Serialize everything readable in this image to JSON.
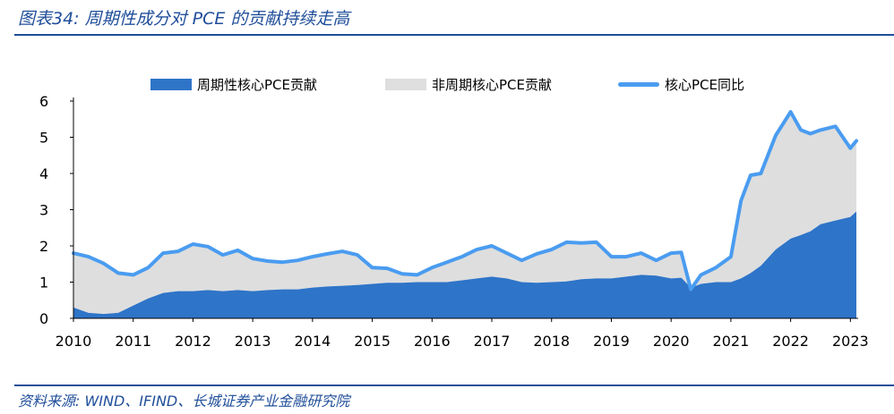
{
  "title": "图表34: 周期性成分对 PCE 的贡献持续走高",
  "source": "资料来源: WIND、IFIND、长城证券产业金融研究院",
  "chart_data": {
    "type": "area",
    "ylim": [
      0,
      6
    ],
    "yticks": [
      "0",
      "1",
      "2",
      "3",
      "4",
      "5",
      "6"
    ],
    "xlim": [
      2010,
      2023.1
    ],
    "xticks": [
      "2010",
      "2011",
      "2012",
      "2013",
      "2014",
      "2015",
      "2016",
      "2017",
      "2018",
      "2019",
      "2020",
      "2021",
      "2022",
      "2023"
    ],
    "legend": "top",
    "colors": {
      "cyclical": "#2e74c8",
      "noncyclical": "#dedede",
      "core": "#4a9cf0"
    },
    "x": [
      2010.0,
      2010.25,
      2010.5,
      2010.75,
      2011.0,
      2011.25,
      2011.5,
      2011.75,
      2012.0,
      2012.25,
      2012.5,
      2012.75,
      2013.0,
      2013.25,
      2013.5,
      2013.75,
      2014.0,
      2014.25,
      2014.5,
      2014.75,
      2015.0,
      2015.25,
      2015.5,
      2015.75,
      2016.0,
      2016.25,
      2016.5,
      2016.75,
      2017.0,
      2017.25,
      2017.5,
      2017.75,
      2018.0,
      2018.25,
      2018.5,
      2018.75,
      2019.0,
      2019.25,
      2019.5,
      2019.75,
      2020.0,
      2020.17,
      2020.33,
      2020.5,
      2020.75,
      2021.0,
      2021.17,
      2021.33,
      2021.5,
      2021.75,
      2022.0,
      2022.17,
      2022.33,
      2022.5,
      2022.75,
      2023.0,
      2023.1
    ],
    "series": [
      {
        "name": "周期性核心PCE贡献",
        "values": [
          0.3,
          0.15,
          0.12,
          0.15,
          0.35,
          0.55,
          0.7,
          0.75,
          0.75,
          0.78,
          0.75,
          0.78,
          0.75,
          0.78,
          0.8,
          0.8,
          0.85,
          0.88,
          0.9,
          0.92,
          0.95,
          0.98,
          0.98,
          1.0,
          1.0,
          1.0,
          1.05,
          1.1,
          1.15,
          1.1,
          1.0,
          0.98,
          1.0,
          1.02,
          1.08,
          1.1,
          1.1,
          1.15,
          1.2,
          1.18,
          1.1,
          1.12,
          0.85,
          0.95,
          1.0,
          1.0,
          1.1,
          1.25,
          1.45,
          1.9,
          2.2,
          2.3,
          2.4,
          2.6,
          2.7,
          2.8,
          2.95
        ]
      },
      {
        "name": "非周期核心PCE贡献",
        "values": [
          1.5,
          1.55,
          1.4,
          1.1,
          0.85,
          0.85,
          1.1,
          1.1,
          1.3,
          1.2,
          1.0,
          1.1,
          0.9,
          0.8,
          0.75,
          0.8,
          0.85,
          0.9,
          0.95,
          0.83,
          0.45,
          0.4,
          0.25,
          0.2,
          0.4,
          0.55,
          0.65,
          0.8,
          0.85,
          0.7,
          0.6,
          0.8,
          0.9,
          1.08,
          1.0,
          1.0,
          0.6,
          0.55,
          0.6,
          0.42,
          0.7,
          0.7,
          -0.05,
          0.25,
          0.4,
          0.7,
          2.15,
          2.7,
          2.55,
          3.15,
          3.5,
          2.9,
          2.7,
          2.6,
          2.6,
          1.9,
          1.95
        ]
      },
      {
        "name": "核心PCE同比",
        "values": [
          1.8,
          1.7,
          1.52,
          1.25,
          1.2,
          1.4,
          1.8,
          1.85,
          2.05,
          1.98,
          1.75,
          1.88,
          1.65,
          1.58,
          1.55,
          1.6,
          1.7,
          1.78,
          1.85,
          1.75,
          1.4,
          1.38,
          1.23,
          1.2,
          1.4,
          1.55,
          1.7,
          1.9,
          2.0,
          1.8,
          1.6,
          1.78,
          1.9,
          2.1,
          2.08,
          2.1,
          1.7,
          1.7,
          1.8,
          1.6,
          1.8,
          1.82,
          0.8,
          1.2,
          1.4,
          1.7,
          3.25,
          3.95,
          4.0,
          5.05,
          5.7,
          5.2,
          5.1,
          5.2,
          5.3,
          4.7,
          4.9
        ]
      }
    ]
  }
}
